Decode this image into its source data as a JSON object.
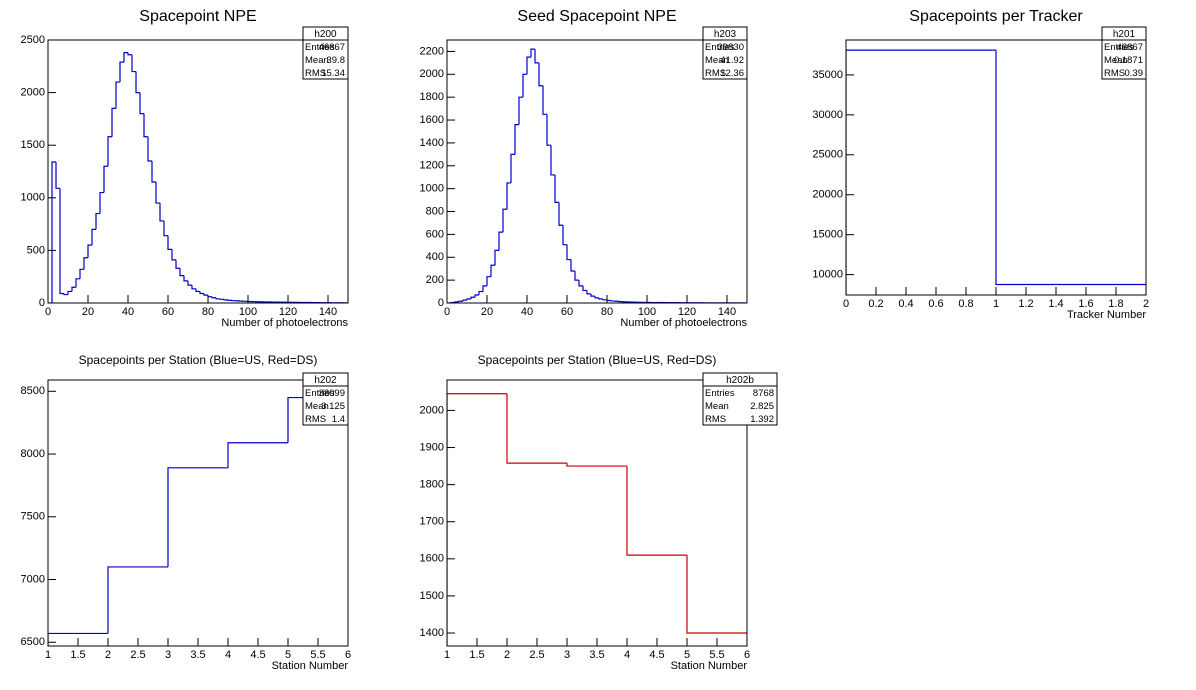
{
  "chart_data": [
    {
      "type": "histogram",
      "title": "Spacepoint NPE",
      "x_label": "Number of photoelectrons",
      "color": "#0000cc",
      "bins": [
        0,
        2,
        4,
        6,
        8,
        10,
        12,
        14,
        16,
        18,
        20,
        22,
        24,
        26,
        28,
        30,
        32,
        34,
        36,
        38,
        40,
        42,
        44,
        46,
        48,
        50,
        52,
        54,
        56,
        58,
        60,
        62,
        64,
        66,
        68,
        70,
        72,
        74,
        76,
        78,
        80,
        82,
        84,
        86,
        88,
        90,
        92,
        94,
        96,
        98,
        100,
        102,
        104,
        106,
        108,
        110,
        112,
        114,
        116,
        118,
        120,
        122,
        124,
        126,
        128,
        130,
        132,
        134,
        136,
        138,
        140,
        142,
        144,
        146,
        148,
        150
      ],
      "values": [
        0,
        1340,
        1090,
        90,
        80,
        110,
        150,
        230,
        320,
        430,
        550,
        700,
        850,
        1050,
        1300,
        1580,
        1850,
        2100,
        2290,
        2380,
        2360,
        2200,
        2000,
        1800,
        1580,
        1350,
        1150,
        950,
        780,
        640,
        510,
        410,
        330,
        260,
        210,
        170,
        135,
        110,
        90,
        75,
        60,
        50,
        40,
        35,
        30,
        25,
        22,
        20,
        18,
        16,
        14,
        13,
        12,
        11,
        10,
        10,
        9,
        8,
        8,
        7,
        7,
        6,
        6,
        5,
        5,
        5,
        4,
        4,
        3,
        3,
        3,
        2,
        2,
        2,
        1
      ],
      "xlim": [
        0,
        150
      ],
      "xticks": [
        0,
        20,
        40,
        60,
        80,
        100,
        120,
        140
      ],
      "ylim": [
        0,
        2500
      ],
      "yticks": [
        0,
        500,
        1000,
        1500,
        2000,
        2500
      ],
      "stats": {
        "name": "h200",
        "rows": [
          [
            "Entries",
            46867
          ],
          [
            "Mean",
            39.8
          ],
          [
            "RMS",
            15.34
          ]
        ]
      }
    },
    {
      "type": "histogram",
      "title": "Seed Spacepoint NPE",
      "x_label": "Number of photoelectrons",
      "color": "#0000cc",
      "bins": [
        0,
        2,
        4,
        6,
        8,
        10,
        12,
        14,
        16,
        18,
        20,
        22,
        24,
        26,
        28,
        30,
        32,
        34,
        36,
        38,
        40,
        42,
        44,
        46,
        48,
        50,
        52,
        54,
        56,
        58,
        60,
        62,
        64,
        66,
        68,
        70,
        72,
        74,
        76,
        78,
        80,
        82,
        84,
        86,
        88,
        90,
        92,
        94,
        96,
        98,
        100,
        102,
        104,
        106,
        108,
        110,
        112,
        114,
        116,
        118,
        120,
        122,
        124,
        126,
        128,
        130,
        132,
        134,
        136,
        138,
        140,
        142,
        144,
        146,
        148,
        150
      ],
      "values": [
        0,
        5,
        10,
        15,
        25,
        35,
        50,
        70,
        100,
        150,
        230,
        330,
        460,
        620,
        820,
        1050,
        1300,
        1560,
        1800,
        2000,
        2150,
        2220,
        2100,
        1900,
        1650,
        1380,
        1120,
        880,
        680,
        510,
        380,
        280,
        200,
        150,
        110,
        80,
        60,
        45,
        35,
        28,
        22,
        18,
        15,
        12,
        10,
        9,
        8,
        7,
        6,
        5,
        5,
        4,
        4,
        4,
        3,
        3,
        3,
        3,
        2,
        2,
        2,
        2,
        2,
        2,
        1,
        1,
        1,
        1,
        1,
        1,
        1,
        1,
        1,
        1,
        0
      ],
      "xlim": [
        0,
        150
      ],
      "xticks": [
        0,
        20,
        40,
        60,
        80,
        100,
        120,
        140
      ],
      "ylim": [
        0,
        2300
      ],
      "yticks": [
        0,
        200,
        400,
        600,
        800,
        1000,
        1200,
        1400,
        1600,
        1800,
        2000,
        2200
      ],
      "stats": {
        "name": "h203",
        "rows": [
          [
            "Entries",
            39830
          ],
          [
            "Mean",
            41.92
          ],
          [
            "RMS",
            12.36
          ]
        ]
      }
    },
    {
      "type": "histogram",
      "title": "Spacepoints per Tracker",
      "x_label": "Tracker Number",
      "color": "#0000cc",
      "bins": [
        0,
        1,
        2
      ],
      "values": [
        38099,
        8768
      ],
      "xlim": [
        0,
        2
      ],
      "xticks": [
        0,
        0.2,
        0.4,
        0.6,
        0.8,
        1,
        1.2,
        1.4,
        1.6,
        1.8,
        2
      ],
      "ylim": [
        7450,
        39370
      ],
      "yticks": [
        10000,
        15000,
        20000,
        25000,
        30000,
        35000
      ],
      "stats": {
        "name": "h201",
        "rows": [
          [
            "Entries",
            46867
          ],
          [
            "Mean",
            0.1871
          ],
          [
            "RMS",
            0.39
          ]
        ]
      }
    },
    {
      "type": "histogram",
      "title": "Spacepoints per Station (Blue=US, Red=DS)",
      "x_label": "Station Number",
      "color": "#0000cc",
      "bins": [
        1,
        2,
        3,
        4,
        5,
        6
      ],
      "values": [
        6570,
        7100,
        7890,
        8090,
        8450
      ],
      "xlim": [
        1,
        6
      ],
      "xticks": [
        1,
        1.5,
        2,
        2.5,
        3,
        3.5,
        4,
        4.5,
        5,
        5.5,
        6
      ],
      "ylim": [
        6470,
        8590
      ],
      "yticks": [
        6500,
        7000,
        7500,
        8000,
        8500
      ],
      "stats": {
        "name": "h202",
        "rows": [
          [
            "Entries",
            38099
          ],
          [
            "Mean",
            3.125
          ],
          [
            "RMS",
            1.4
          ]
        ]
      }
    },
    {
      "type": "histogram",
      "title": "Spacepoints per Station (Blue=US, Red=DS)",
      "x_label": "Station Number",
      "color": "#cc0000",
      "bins": [
        1,
        2,
        3,
        4,
        5,
        6
      ],
      "values": [
        2045,
        1858,
        1850,
        1610,
        1400
      ],
      "xlim": [
        1,
        6
      ],
      "xticks": [
        1,
        1.5,
        2,
        2.5,
        3,
        3.5,
        4,
        4.5,
        5,
        5.5,
        6
      ],
      "ylim": [
        1365,
        2082
      ],
      "yticks": [
        1400,
        1500,
        1600,
        1700,
        1800,
        1900,
        2000
      ],
      "stats": {
        "name": "h202b",
        "rows": [
          [
            "Entries",
            8768
          ],
          [
            "Mean",
            2.825
          ],
          [
            "RMS",
            1.392
          ]
        ]
      }
    }
  ]
}
